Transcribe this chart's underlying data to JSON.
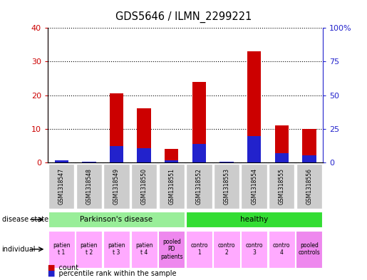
{
  "title": "GDS5646 / ILMN_2299221",
  "samples": [
    "GSM1318547",
    "GSM1318548",
    "GSM1318549",
    "GSM1318550",
    "GSM1318551",
    "GSM1318552",
    "GSM1318553",
    "GSM1318554",
    "GSM1318555",
    "GSM1318556"
  ],
  "count_values": [
    0.5,
    0.3,
    20.5,
    16.0,
    4.0,
    24.0,
    0.3,
    33.0,
    11.0,
    10.0
  ],
  "percentile_values": [
    1.5,
    0.3,
    12.0,
    10.5,
    1.5,
    14.0,
    0.3,
    19.5,
    7.0,
    5.5
  ],
  "left_ylim": [
    0,
    40
  ],
  "right_ylim": [
    0,
    100
  ],
  "left_yticks": [
    0,
    10,
    20,
    30,
    40
  ],
  "right_yticks": [
    0,
    25,
    50,
    75,
    100
  ],
  "right_yticklabels": [
    "0",
    "25",
    "50",
    "75",
    "100%"
  ],
  "bar_color_red": "#CC0000",
  "bar_color_blue": "#2222CC",
  "disease_state_groups": [
    {
      "label": "Parkinson's disease",
      "start": 0,
      "end": 5,
      "color": "#99EE99"
    },
    {
      "label": "healthy",
      "start": 5,
      "end": 10,
      "color": "#33DD33"
    }
  ],
  "individual_labels": [
    {
      "text": "patien\nt 1",
      "color": "#FFAAFF"
    },
    {
      "text": "patien\nt 2",
      "color": "#FFAAFF"
    },
    {
      "text": "patien\nt 3",
      "color": "#FFAAFF"
    },
    {
      "text": "patien\nt 4",
      "color": "#FFAAFF"
    },
    {
      "text": "pooled\nPD\npatients",
      "color": "#EE88EE"
    },
    {
      "text": "contro\n1",
      "color": "#FFAAFF"
    },
    {
      "text": "contro\n2",
      "color": "#FFAAFF"
    },
    {
      "text": "contro\n3",
      "color": "#FFAAFF"
    },
    {
      "text": "contro\n4",
      "color": "#FFAAFF"
    },
    {
      "text": "pooled\ncontrols",
      "color": "#EE88EE"
    }
  ],
  "legend_items": [
    {
      "label": "count",
      "color": "#CC0000"
    },
    {
      "label": "percentile rank within the sample",
      "color": "#2222CC"
    }
  ],
  "left_axis_color": "#CC0000",
  "right_axis_color": "#2222CC",
  "gsm_bg_color": "#CCCCCC",
  "fig_width": 5.15,
  "fig_height": 3.93,
  "dpi": 100
}
